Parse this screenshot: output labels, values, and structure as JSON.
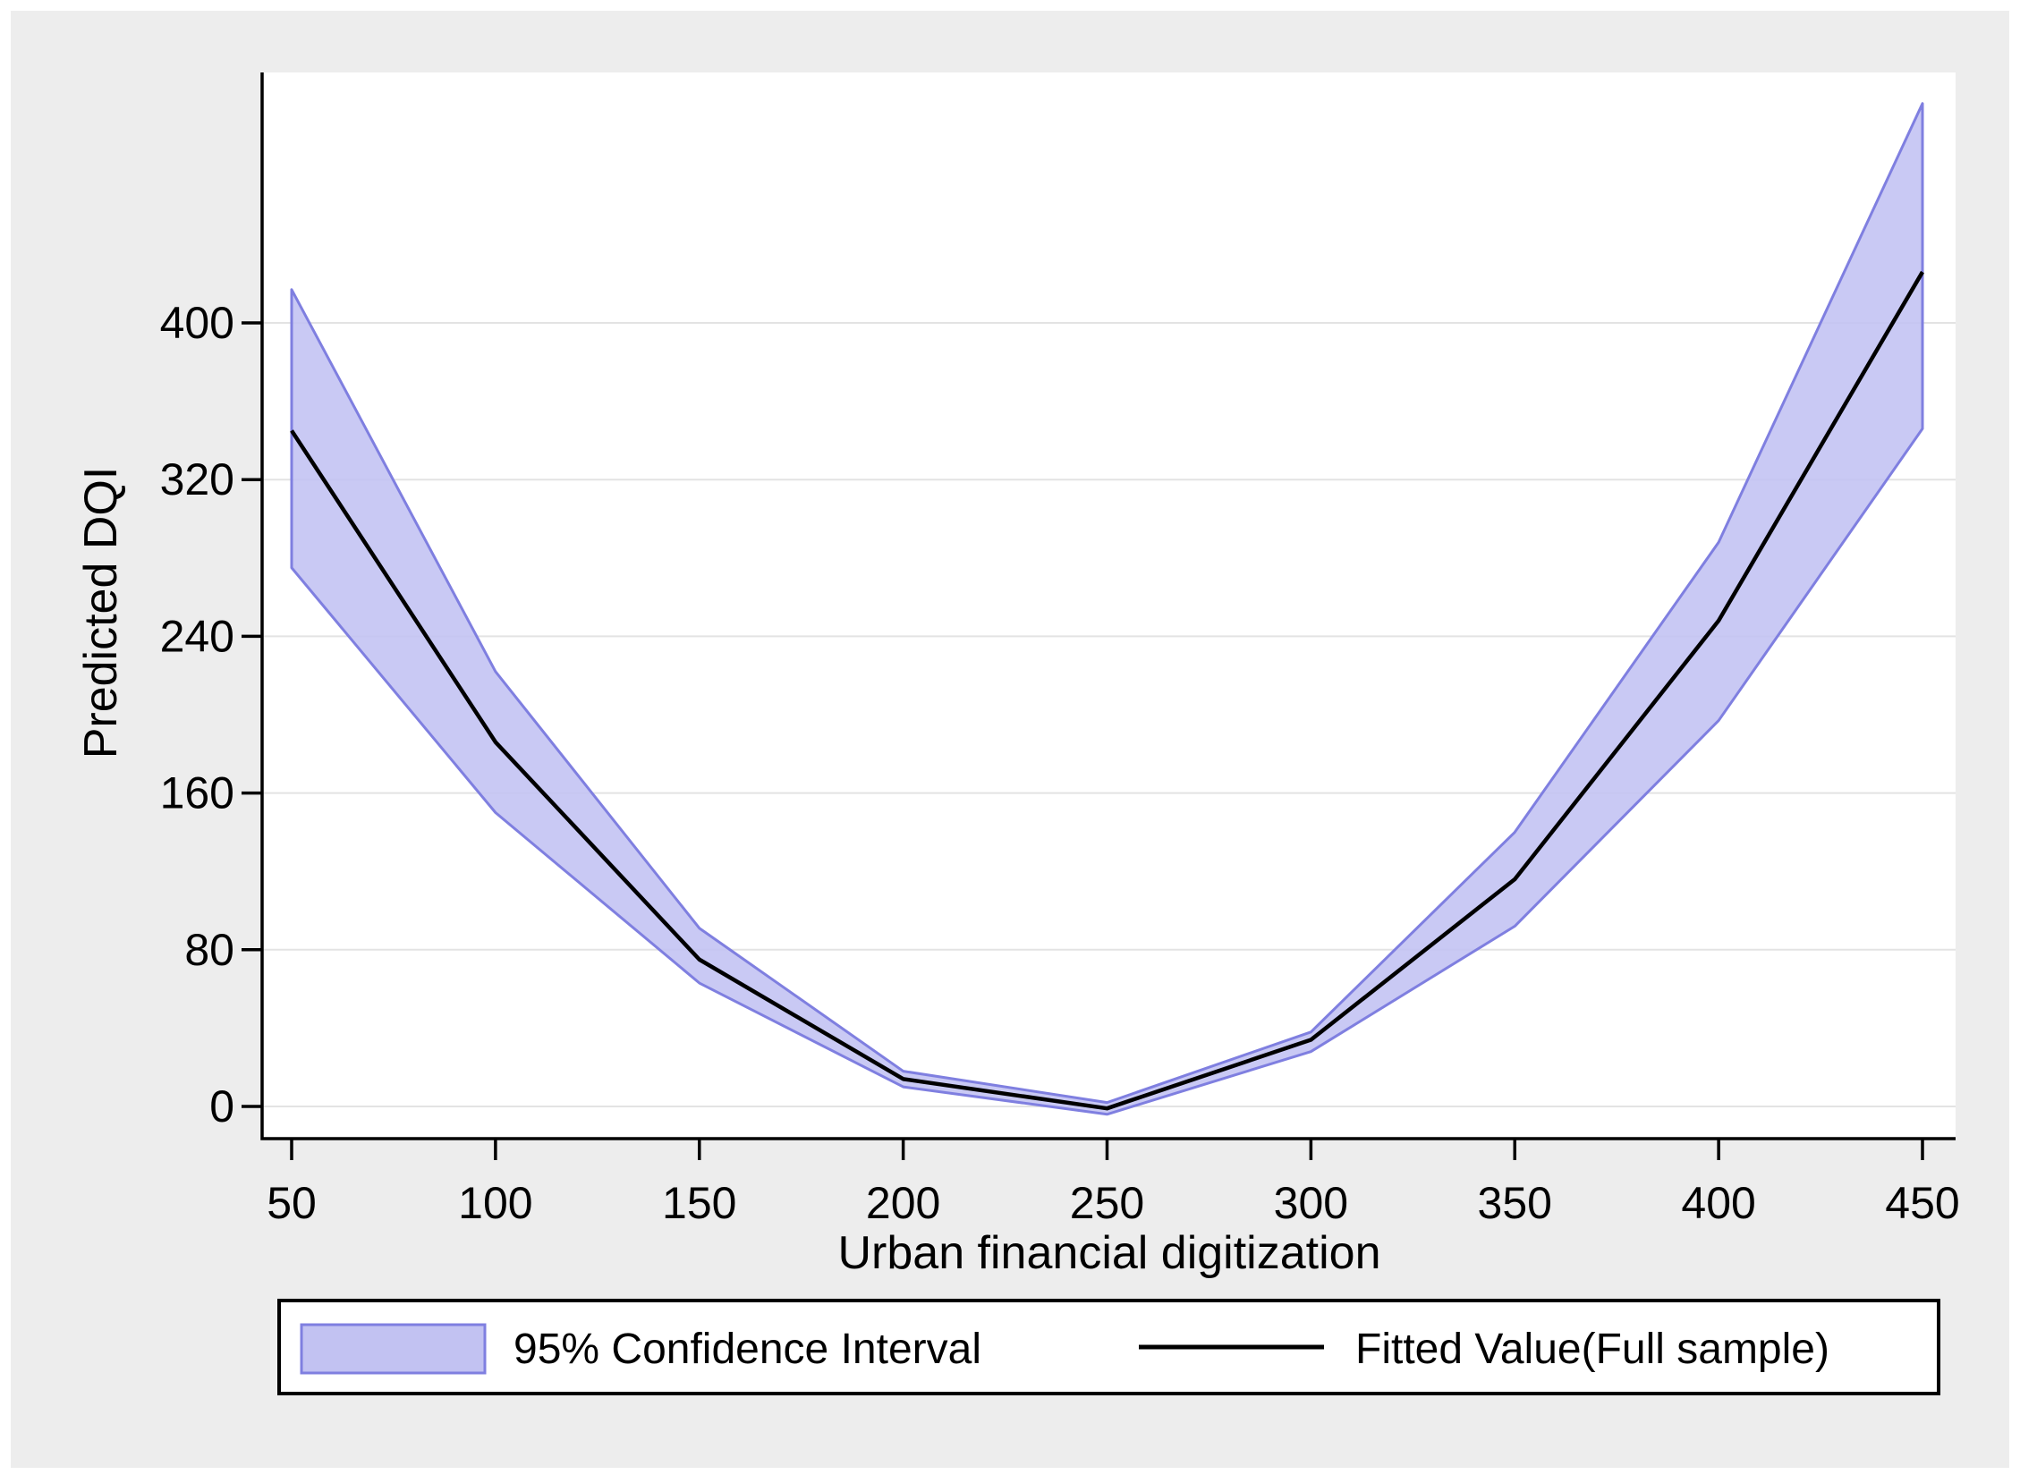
{
  "chart_data": {
    "type": "area",
    "title": "",
    "xlabel": "Urban financial digitization",
    "ylabel": "Predicted DQI",
    "x_ticks": [
      50,
      100,
      150,
      200,
      250,
      300,
      350,
      400,
      450
    ],
    "y_ticks": [
      0,
      80,
      160,
      240,
      320,
      400
    ],
    "xlim": [
      43,
      458
    ],
    "ylim": [
      -16,
      528
    ],
    "grid": "horizontal",
    "x": [
      50,
      100,
      150,
      200,
      250,
      300,
      350,
      400,
      450
    ],
    "series": [
      {
        "name": "95% Confidence Interval",
        "type": "band",
        "fill": "#c2c2f2",
        "stroke": "#7f7fe0",
        "low": [
          275,
          150,
          63,
          10,
          -4,
          28,
          92,
          197,
          346
        ],
        "high": [
          417,
          222,
          91,
          18,
          2,
          38,
          140,
          288,
          512
        ]
      },
      {
        "name": "Fitted Value(Full sample)",
        "type": "line",
        "color": "#000000",
        "values": [
          345,
          186,
          75,
          14,
          -1,
          34,
          116,
          248,
          426
        ]
      }
    ],
    "legend": {
      "position": "bottom",
      "items": [
        "95% Confidence Interval",
        "Fitted Value(Full sample)"
      ]
    }
  },
  "colors": {
    "canvas_background": "#ededed",
    "plot_background": "#ffffff",
    "gridline": "#e3e3e3",
    "axis": "#000000",
    "band_fill": "#c2c2f2",
    "band_stroke": "#7f7fe0",
    "fitted_line": "#000000",
    "legend_border": "#000000",
    "legend_background": "#ffffff"
  }
}
